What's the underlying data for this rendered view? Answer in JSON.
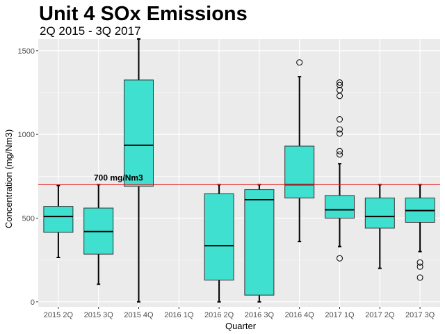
{
  "chart_data": {
    "type": "boxplot",
    "title": "Unit 4 SOx Emissions",
    "subtitle": "2Q 2015 - 3Q 2017",
    "xlabel": "Quarter",
    "ylabel": "Concentration (mg/Nm3)",
    "ylim": [
      -30,
      1570
    ],
    "yticks": [
      0,
      500,
      1000,
      1500
    ],
    "categories": [
      "2015 2Q",
      "2015 3Q",
      "2015 4Q",
      "2016 1Q",
      "2016 2Q",
      "2016 3Q",
      "2016 4Q",
      "2017 1Q",
      "2017 2Q",
      "2017 3Q"
    ],
    "boxes": [
      {
        "category": "2015 2Q",
        "whisker_low": 265,
        "q1": 415,
        "median": 510,
        "q3": 570,
        "whisker_high": 695,
        "outliers": []
      },
      {
        "category": "2015 3Q",
        "whisker_low": 105,
        "q1": 285,
        "median": 420,
        "q3": 560,
        "whisker_high": 700,
        "outliers": []
      },
      {
        "category": "2015 4Q",
        "whisker_low": 0,
        "q1": 690,
        "median": 935,
        "q3": 1325,
        "whisker_high": 1570,
        "outliers": []
      },
      {
        "category": "2016 1Q"
      },
      {
        "category": "2016 2Q",
        "whisker_low": 0,
        "q1": 130,
        "median": 335,
        "q3": 645,
        "whisker_high": 700,
        "outliers": []
      },
      {
        "category": "2016 3Q",
        "whisker_low": 0,
        "q1": 40,
        "median": 610,
        "q3": 670,
        "whisker_high": 700,
        "outliers": []
      },
      {
        "category": "2016 4Q",
        "whisker_low": 360,
        "q1": 620,
        "median": 700,
        "q3": 930,
        "whisker_high": 1345,
        "outliers": [
          1430
        ]
      },
      {
        "category": "2017 1Q",
        "whisker_low": 330,
        "q1": 500,
        "median": 550,
        "q3": 635,
        "whisker_high": 825,
        "outliers": [
          1310,
          1295,
          1265,
          1230,
          1090,
          1030,
          1005,
          900,
          880,
          260
        ]
      },
      {
        "category": "2017 2Q",
        "whisker_low": 200,
        "q1": 440,
        "median": 510,
        "q3": 620,
        "whisker_high": 700,
        "outliers": []
      },
      {
        "category": "2017 3Q",
        "whisker_low": 300,
        "q1": 475,
        "median": 545,
        "q3": 620,
        "whisker_high": 700,
        "outliers": [
          235,
          210,
          145
        ]
      }
    ],
    "reference_line": {
      "value": 700,
      "label": "700 mg/Nm3",
      "color": "#e41a1c"
    },
    "box_fill": "#40e0d0",
    "panel_background": "#ebebeb",
    "grid": true,
    "legend": "none"
  }
}
